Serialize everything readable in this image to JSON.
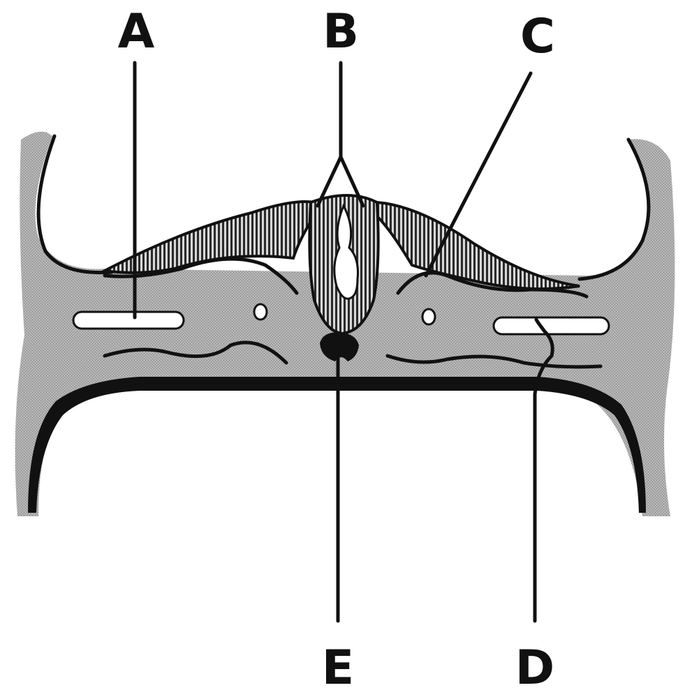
{
  "labels": {
    "a": "A",
    "b": "B",
    "c": "C",
    "d": "D",
    "e": "E"
  },
  "colors": {
    "tissue": "#a9a9a9",
    "tissue_dark": "#8f8f8f",
    "outline": "#111111",
    "cavity": "#ffffff",
    "background": "#ffffff"
  }
}
